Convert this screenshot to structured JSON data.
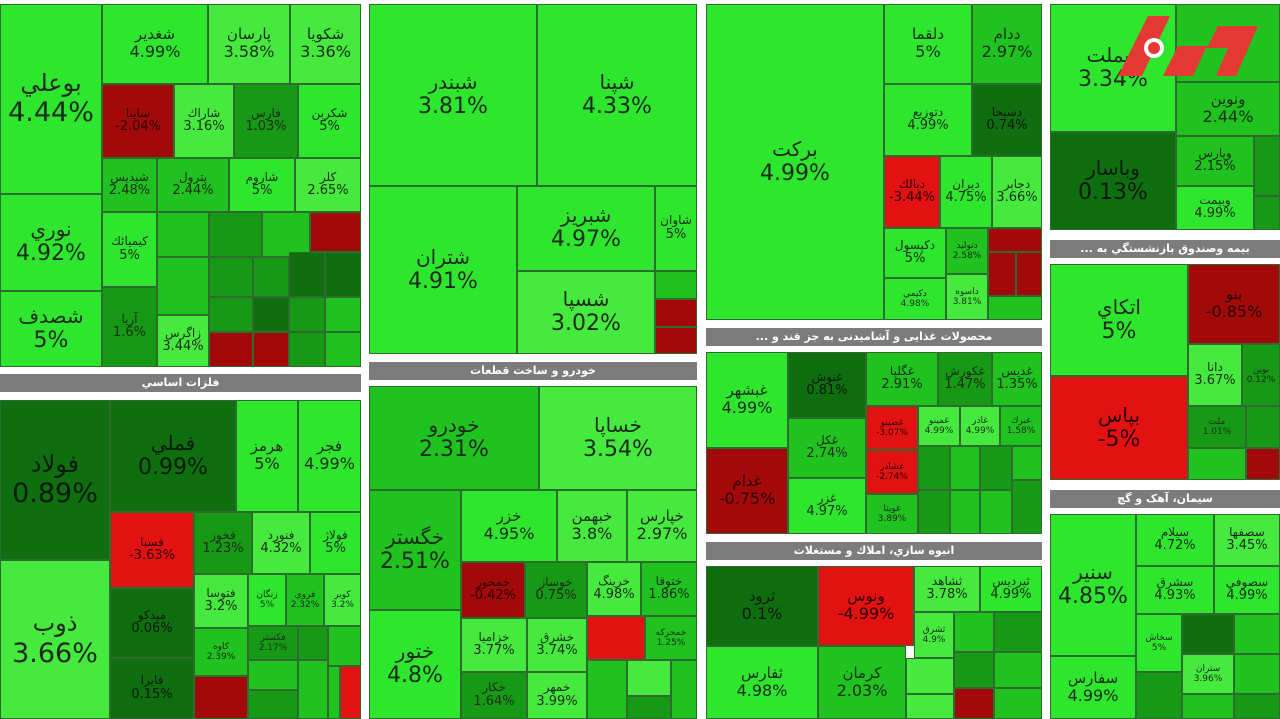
{
  "sectors": {
    "basic_metals": "فلزات اساسي",
    "auto": "خودرو و ساخت قطعات",
    "food": "... محصولات غذایی و آشامیدنی به جز قند و",
    "construction": "انبوه سازي، املاك و مستغلات",
    "insurance": "... بیمه وصندوق بازنشستگي به",
    "cement": "سیمان، آهک و گچ"
  },
  "tiles": [
    {
      "sym": "بوعلي",
      "pct": "4.44%"
    },
    {
      "sym": "نوري",
      "pct": "4.92%"
    },
    {
      "sym": "شصدف",
      "pct": "5%"
    },
    {
      "sym": "شغدير",
      "pct": "4.99%"
    },
    {
      "sym": "پارسان",
      "pct": "3.58%"
    },
    {
      "sym": "شكويا",
      "pct": "3.36%"
    },
    {
      "sym": "ساينا",
      "pct": "-2.04%"
    },
    {
      "sym": "شاراك",
      "pct": "3.16%"
    },
    {
      "sym": "فارس",
      "pct": "1.03%"
    },
    {
      "sym": "شكربن",
      "pct": "5%"
    },
    {
      "sym": "شپديس",
      "pct": "2.48%"
    },
    {
      "sym": "پترول",
      "pct": "2.44%"
    },
    {
      "sym": "شاروم",
      "pct": "5%"
    },
    {
      "sym": "كلر",
      "pct": "2.65%"
    },
    {
      "sym": "كيميائك",
      "pct": "5%"
    },
    {
      "sym": "آريا",
      "pct": "1.6%"
    },
    {
      "sym": "زاگرس",
      "pct": "3.44%"
    },
    {
      "sym": "شبندر",
      "pct": "3.81%"
    },
    {
      "sym": "شپنا",
      "pct": "4.33%"
    },
    {
      "sym": "شتران",
      "pct": "4.91%"
    },
    {
      "sym": "شبريز",
      "pct": "4.97%"
    },
    {
      "sym": "شسپا",
      "pct": "3.02%"
    },
    {
      "sym": "شاوان",
      "pct": "5%"
    },
    {
      "sym": "بركت",
      "pct": "4.99%"
    },
    {
      "sym": "دلقما",
      "pct": "5%"
    },
    {
      "sym": "ددام",
      "pct": "2.97%"
    },
    {
      "sym": "دتوزيع",
      "pct": "4.99%"
    },
    {
      "sym": "دسبحا",
      "pct": "0.74%"
    },
    {
      "sym": "دبالك",
      "pct": "-3.44%"
    },
    {
      "sym": "ديران",
      "pct": "4.75%"
    },
    {
      "sym": "دجابر",
      "pct": "3.66%"
    },
    {
      "sym": "دكپسول",
      "pct": "5%"
    },
    {
      "sym": "دتوليد",
      "pct": "2.58%"
    },
    {
      "sym": "دكيمي",
      "pct": "4.98%"
    },
    {
      "sym": "داسوه",
      "pct": "3.81%"
    },
    {
      "sym": "وبملت",
      "pct": "3.34%"
    },
    {
      "sym": "ونوين",
      "pct": "2.44%"
    },
    {
      "sym": "وباسار",
      "pct": "0.13%"
    },
    {
      "sym": "وپارس",
      "pct": "2.15%"
    },
    {
      "sym": "وبيمت",
      "pct": "4.99%"
    },
    {
      "sym": "فولاد",
      "pct": "0.89%"
    },
    {
      "sym": "فملي",
      "pct": "0.99%"
    },
    {
      "sym": "هرمز",
      "pct": "5%"
    },
    {
      "sym": "فجر",
      "pct": "4.99%"
    },
    {
      "sym": "ذوب",
      "pct": "3.66%"
    },
    {
      "sym": "فسبا",
      "pct": "-3.63%"
    },
    {
      "sym": "فخوز",
      "pct": "1.23%"
    },
    {
      "sym": "فنورد",
      "pct": "4.32%"
    },
    {
      "sym": "فولاژ",
      "pct": "5%"
    },
    {
      "sym": "ميدكو",
      "pct": "0.06%"
    },
    {
      "sym": "فتوسا",
      "pct": "3.2%"
    },
    {
      "sym": "زنگان",
      "pct": "5%"
    },
    {
      "sym": "فروي",
      "pct": "2.32%"
    },
    {
      "sym": "كوير",
      "pct": "3.2%"
    },
    {
      "sym": "فايرا",
      "pct": "0.15%"
    },
    {
      "sym": "كاوه",
      "pct": "2.39%"
    },
    {
      "sym": "فكستر",
      "pct": "2.17%"
    },
    {
      "sym": "خودرو",
      "pct": "2.31%"
    },
    {
      "sym": "خساپا",
      "pct": "3.54%"
    },
    {
      "sym": "خگستر",
      "pct": "2.51%"
    },
    {
      "sym": "خزر",
      "pct": "4.95%"
    },
    {
      "sym": "خبهمن",
      "pct": "3.8%"
    },
    {
      "sym": "خپارس",
      "pct": "2.97%"
    },
    {
      "sym": "خمحور",
      "pct": "-0.42%"
    },
    {
      "sym": "خوساز",
      "pct": "0.75%"
    },
    {
      "sym": "خرينگ",
      "pct": "4.98%"
    },
    {
      "sym": "ختوقا",
      "pct": "1.86%"
    },
    {
      "sym": "ختور",
      "pct": "4.8%"
    },
    {
      "sym": "خزاميا",
      "pct": "3.77%"
    },
    {
      "sym": "خشرق",
      "pct": "3.74%"
    },
    {
      "sym": "خمحركه",
      "pct": "1.25%"
    },
    {
      "sym": "خكار",
      "pct": "1.64%"
    },
    {
      "sym": "خمهر",
      "pct": "3.99%"
    },
    {
      "sym": "غبشهر",
      "pct": "4.99%"
    },
    {
      "sym": "غنوش",
      "pct": "0.81%"
    },
    {
      "sym": "غگلپا",
      "pct": "2.91%"
    },
    {
      "sym": "غكورش",
      "pct": "1.47%"
    },
    {
      "sym": "غديس",
      "pct": "1.35%"
    },
    {
      "sym": "غدام",
      "pct": "-0.75%"
    },
    {
      "sym": "غكل",
      "pct": "2.74%"
    },
    {
      "sym": "غصينو",
      "pct": "-3.07%"
    },
    {
      "sym": "غمينو",
      "pct": "4.99%"
    },
    {
      "sym": "غاذر",
      "pct": "4.99%"
    },
    {
      "sym": "غبرك",
      "pct": "1.58%"
    },
    {
      "sym": "غزر",
      "pct": "4.97%"
    },
    {
      "sym": "غشاذر",
      "pct": "-2.74%"
    },
    {
      "sym": "غويتا",
      "pct": "3.89%"
    },
    {
      "sym": "ثرود",
      "pct": "0.1%"
    },
    {
      "sym": "ونوس",
      "pct": "-4.99%"
    },
    {
      "sym": "ثشاهد",
      "pct": "3.78%"
    },
    {
      "sym": "ثپرديس",
      "pct": "4.99%"
    },
    {
      "sym": "ثشرق",
      "pct": "4.9%"
    },
    {
      "sym": "ثفارس",
      "pct": "4.98%"
    },
    {
      "sym": "كرمان",
      "pct": "2.03%"
    },
    {
      "sym": "اتكاي",
      "pct": "5%"
    },
    {
      "sym": "بنو",
      "pct": "-0.85%"
    },
    {
      "sym": "بپاس",
      "pct": "-5%"
    },
    {
      "sym": "دانا",
      "pct": "3.67%"
    },
    {
      "sym": "نوين",
      "pct": "0.12%"
    },
    {
      "sym": "ملت",
      "pct": "1.01%"
    },
    {
      "sym": "سنير",
      "pct": "4.85%"
    },
    {
      "sym": "سيلام",
      "pct": "4.72%"
    },
    {
      "sym": "سصفها",
      "pct": "3.45%"
    },
    {
      "sym": "سشرق",
      "pct": "4.93%"
    },
    {
      "sym": "سصوفي",
      "pct": "4.99%"
    },
    {
      "sym": "سخاش",
      "pct": "5%"
    },
    {
      "sym": "سفارس",
      "pct": "4.99%"
    },
    {
      "sym": "ستران",
      "pct": "3.96%"
    }
  ]
}
